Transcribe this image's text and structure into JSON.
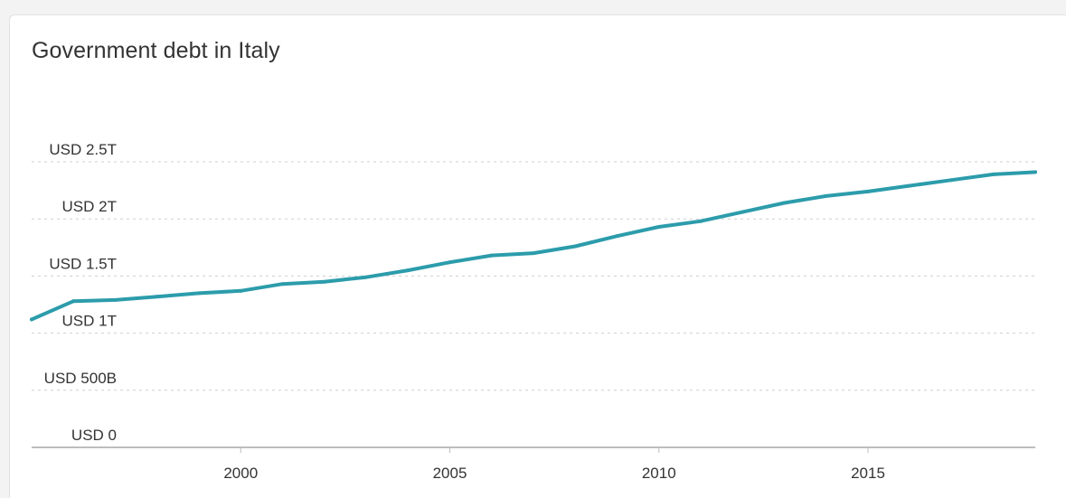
{
  "chart_data": {
    "type": "line",
    "title": "Government debt in Italy",
    "xlabel": "",
    "ylabel": "",
    "xlim": [
      1995,
      2019
    ],
    "ylim": [
      0,
      2.5
    ],
    "grid": true,
    "legend": "none",
    "y_ticks": [
      {
        "value": 0,
        "label": "USD 0"
      },
      {
        "value": 0.5,
        "label": "USD 500B"
      },
      {
        "value": 1,
        "label": "USD 1T"
      },
      {
        "value": 1.5,
        "label": "USD 1.5T"
      },
      {
        "value": 2,
        "label": "USD 2T"
      },
      {
        "value": 2.5,
        "label": "USD 2.5T"
      }
    ],
    "x_ticks": [
      {
        "value": 2000,
        "label": "2000"
      },
      {
        "value": 2005,
        "label": "2005"
      },
      {
        "value": 2010,
        "label": "2010"
      },
      {
        "value": 2015,
        "label": "2015"
      }
    ],
    "series": [
      {
        "color": "#2c9cab",
        "x": [
          1995,
          1996,
          1997,
          1998,
          1999,
          2000,
          2001,
          2002,
          2003,
          2004,
          2005,
          2006,
          2007,
          2008,
          2009,
          2010,
          2011,
          2012,
          2013,
          2014,
          2015,
          2016,
          2017,
          2018,
          2019
        ],
        "values": [
          1.12,
          1.28,
          1.29,
          1.32,
          1.35,
          1.37,
          1.43,
          1.45,
          1.49,
          1.55,
          1.62,
          1.68,
          1.7,
          1.76,
          1.85,
          1.93,
          1.98,
          2.06,
          2.14,
          2.2,
          2.24,
          2.29,
          2.34,
          2.39,
          2.41
        ]
      }
    ]
  }
}
